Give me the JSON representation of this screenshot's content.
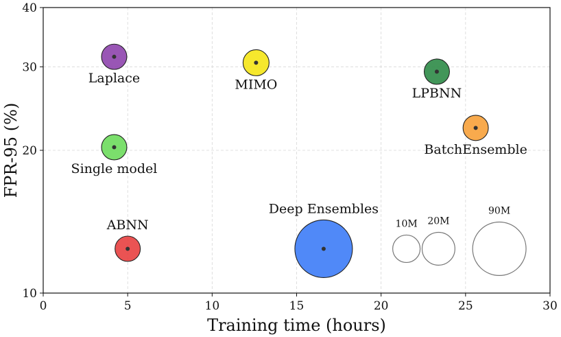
{
  "chart_data": {
    "type": "scatter",
    "title": "",
    "xlabel": "Training time (hours)",
    "ylabel": "FPR-95 (%)",
    "xlim": [
      0,
      30
    ],
    "ylim": [
      10,
      40
    ],
    "y_scale": "log",
    "grid": true,
    "x_ticks": [
      0,
      5,
      10,
      15,
      20,
      25,
      30
    ],
    "y_ticks": [
      10,
      20,
      30,
      40
    ],
    "points": [
      {
        "label": "Laplace",
        "x": 4.2,
        "y": 31.5,
        "params_m": 7,
        "color": "#8e44ad",
        "label_pos": "below"
      },
      {
        "label": "MIMO",
        "x": 12.6,
        "y": 30.6,
        "params_m": 8,
        "color": "#f5e616",
        "label_pos": "below"
      },
      {
        "label": "LPBNN",
        "x": 23.3,
        "y": 29.3,
        "params_m": 7,
        "color": "#2e8b47",
        "label_pos": "below"
      },
      {
        "label": "BatchEnsemble",
        "x": 25.6,
        "y": 22.3,
        "params_m": 7,
        "color": "#f7a13a",
        "label_pos": "below"
      },
      {
        "label": "Single model",
        "x": 4.2,
        "y": 20.3,
        "params_m": 7,
        "color": "#6ddc5c",
        "label_pos": "below"
      },
      {
        "label": "ABNN",
        "x": 5.0,
        "y": 12.4,
        "params_m": 7,
        "color": "#e84040",
        "label_pos": "above"
      },
      {
        "label": "Deep Ensembles",
        "x": 16.6,
        "y": 12.4,
        "params_m": 110,
        "color": "#3d7cf7",
        "label_pos": "above"
      }
    ],
    "size_legend": [
      {
        "label": "10M",
        "x": 21.5,
        "y": 12.4,
        "params_m": 10
      },
      {
        "label": "20M",
        "x": 23.4,
        "y": 12.4,
        "params_m": 20
      },
      {
        "label": "90M",
        "x": 27.0,
        "y": 12.4,
        "params_m": 90
      }
    ]
  }
}
